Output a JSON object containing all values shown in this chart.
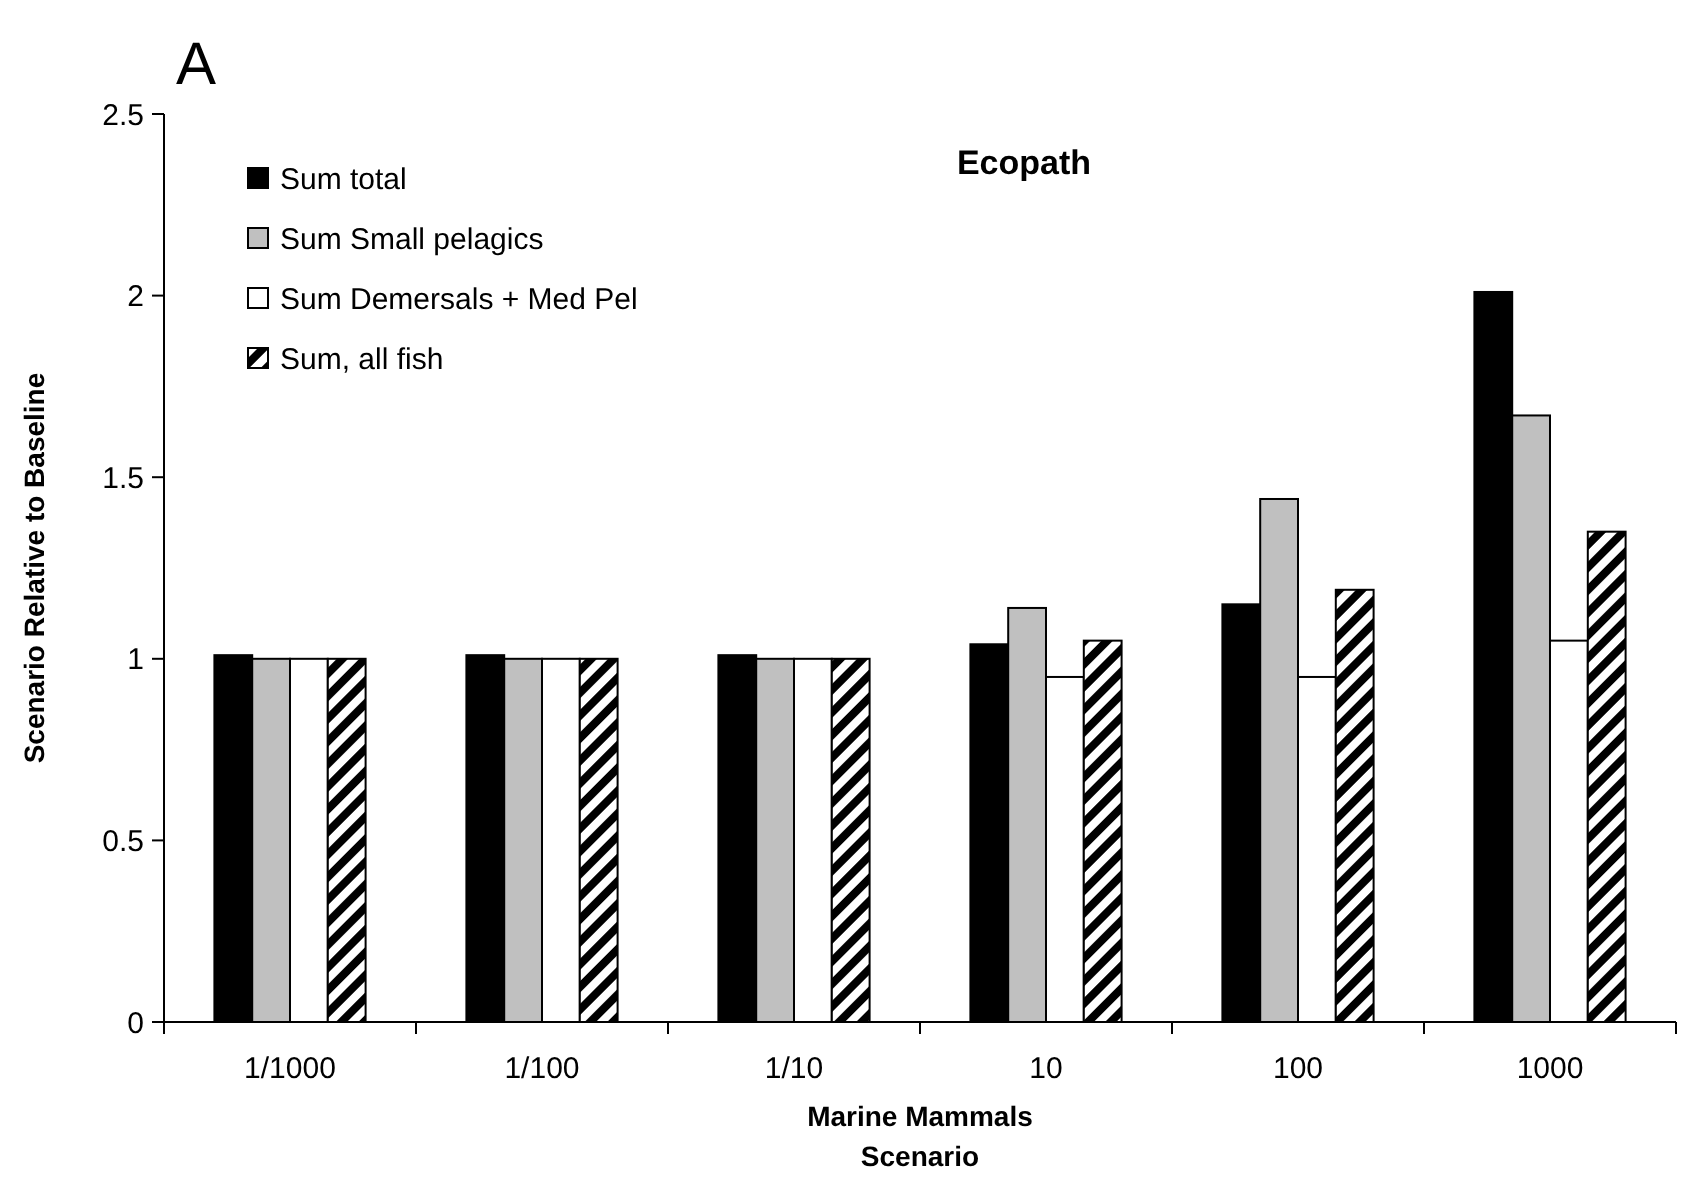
{
  "chart_data": {
    "type": "bar",
    "title": "Ecopath",
    "xlabel": "Marine Mammals\nScenario",
    "ylabel": "Scenario Relative to Baseline",
    "annotations": [
      "A"
    ],
    "categories": [
      "1/1000",
      "1/100",
      "1/10",
      "10",
      "100",
      "1000"
    ],
    "series": [
      {
        "name": "Sum total",
        "color": "#000000",
        "values": [
          1.01,
          1.01,
          1.01,
          1.04,
          1.15,
          2.01
        ]
      },
      {
        "name": "Sum Small pelagics",
        "color": "#c0c0c0",
        "values": [
          1.0,
          1.0,
          1.0,
          1.14,
          1.44,
          1.67
        ]
      },
      {
        "name": "Sum Demersals + Med Pel",
        "color": "#ffffff",
        "values": [
          1.0,
          1.0,
          1.0,
          0.95,
          0.95,
          1.05
        ]
      },
      {
        "name": "Sum, all fish",
        "color": "#000000",
        "values": [
          1.0,
          1.0,
          1.0,
          1.05,
          1.19,
          1.35
        ]
      }
    ],
    "ylim": [
      0,
      2.5
    ],
    "yticks": [
      0,
      0.5,
      1,
      1.5,
      2,
      2.5
    ],
    "grid": false,
    "legend": "top left"
  }
}
